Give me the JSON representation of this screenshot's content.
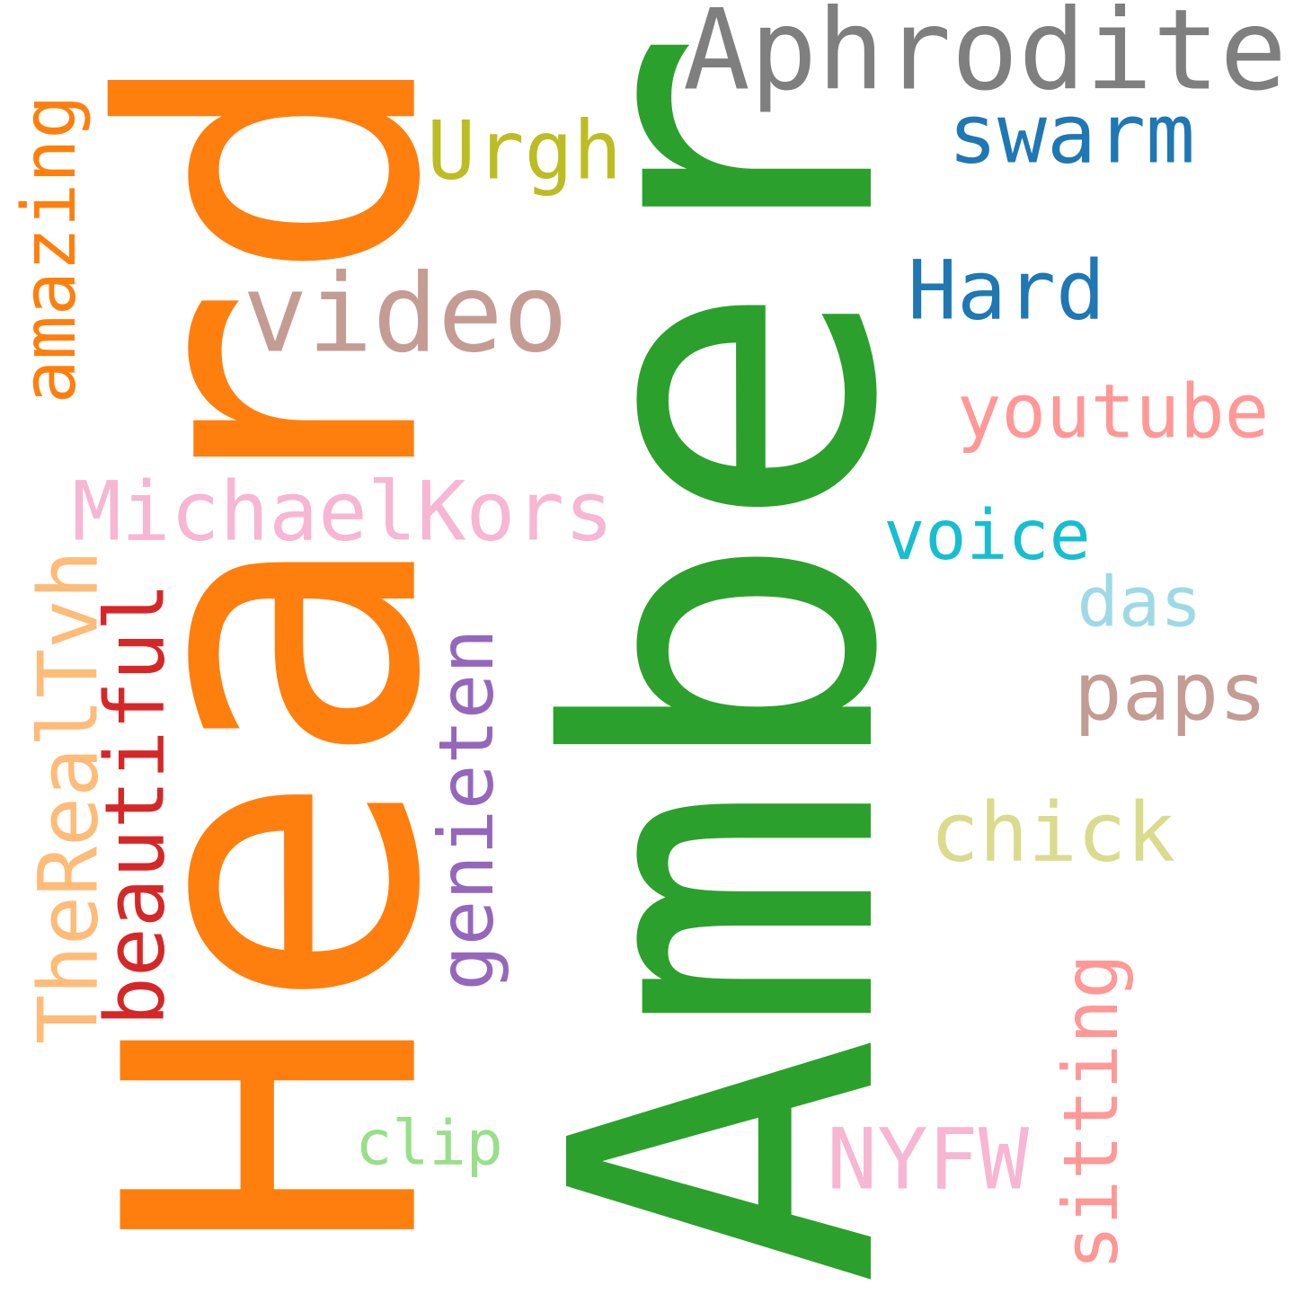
{
  "words": [
    {
      "key": "heard",
      "text": "Heard",
      "color": "#ff7f0e",
      "orientation": "vertical"
    },
    {
      "key": "amber",
      "text": "Amber",
      "color": "#2ca02c",
      "orientation": "vertical"
    },
    {
      "key": "aphrodite",
      "text": "Aphrodite",
      "color": "#7f7f7f",
      "orientation": "horizontal"
    },
    {
      "key": "swarm",
      "text": "swarm",
      "color": "#1f77b4",
      "orientation": "horizontal"
    },
    {
      "key": "urgh",
      "text": "Urgh",
      "color": "#bcbd22",
      "orientation": "horizontal"
    },
    {
      "key": "amazing",
      "text": "amazing",
      "color": "#ff7f0e",
      "orientation": "vertical"
    },
    {
      "key": "video",
      "text": "video",
      "color": "#c49c94",
      "orientation": "horizontal"
    },
    {
      "key": "hard",
      "text": "Hard",
      "color": "#1f77b4",
      "orientation": "horizontal"
    },
    {
      "key": "youtube",
      "text": "youtube",
      "color": "#ff9896",
      "orientation": "horizontal"
    },
    {
      "key": "michaelkors",
      "text": "MichaelKors",
      "color": "#f7b6d2",
      "orientation": "horizontal"
    },
    {
      "key": "voice",
      "text": "voice",
      "color": "#17becf",
      "orientation": "horizontal"
    },
    {
      "key": "das",
      "text": "das",
      "color": "#9edae5",
      "orientation": "horizontal"
    },
    {
      "key": "therealtvh",
      "text": "TheRealTvh",
      "color": "#ffbb78",
      "orientation": "vertical"
    },
    {
      "key": "beautiful",
      "text": "beautiful",
      "color": "#d62728",
      "orientation": "vertical"
    },
    {
      "key": "genieten",
      "text": "genieten",
      "color": "#9467bd",
      "orientation": "vertical"
    },
    {
      "key": "paps",
      "text": "paps",
      "color": "#c49c94",
      "orientation": "horizontal"
    },
    {
      "key": "chick",
      "text": "chick",
      "color": "#dbdb8d",
      "orientation": "horizontal"
    },
    {
      "key": "sitting",
      "text": "sitting",
      "color": "#ff9896",
      "orientation": "vertical"
    },
    {
      "key": "clip",
      "text": "clip",
      "color": "#98df8a",
      "orientation": "horizontal"
    },
    {
      "key": "nyfw",
      "text": "NYFW",
      "color": "#f7b6d2",
      "orientation": "horizontal"
    }
  ]
}
